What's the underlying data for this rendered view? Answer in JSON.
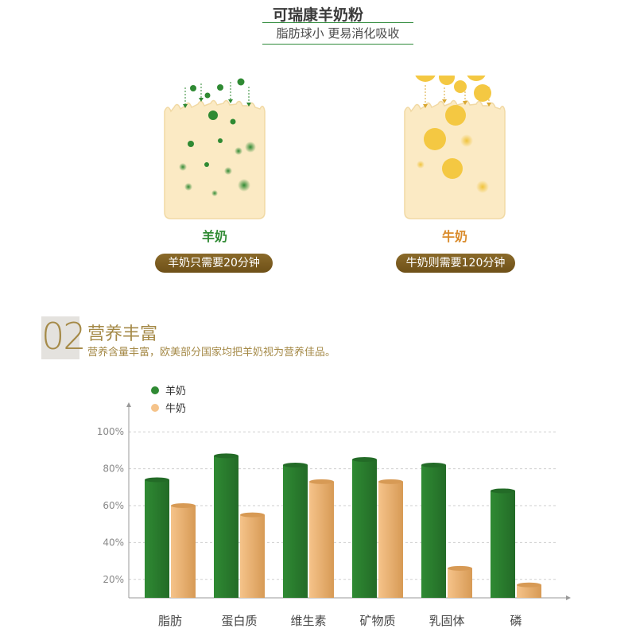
{
  "header": {
    "title": "可瑞康羊奶粉",
    "subtitle": "脂肪球小 更易消化吸收"
  },
  "illustrations": {
    "goat": {
      "label": "羊奶",
      "note": "羊奶只需要20分钟"
    },
    "cow": {
      "label": "牛奶",
      "note": "牛奶则需要120分钟"
    }
  },
  "section": {
    "number": "02",
    "title": "营养丰富",
    "description": "营养含量丰富，欧美部分国家均把羊奶视为营养佳品。"
  },
  "colors": {
    "goat_green": "#2f8a33",
    "cow_orange": "#f5c38a",
    "gold": "#a58a48",
    "cell_fill": "#fbeac4"
  },
  "chart_data": {
    "type": "bar",
    "categories": [
      "脂肪",
      "蛋白质",
      "维生素",
      "矿物质",
      "乳固体",
      "磷"
    ],
    "series": [
      {
        "name": "羊奶",
        "color": "#2f8a33",
        "values": [
          74,
          87,
          82,
          85,
          82,
          68
        ]
      },
      {
        "name": "牛奶",
        "color": "#f5c38a",
        "values": [
          60,
          55,
          73,
          73,
          26,
          17
        ]
      }
    ],
    "ylim": [
      10,
      110
    ],
    "yticks": [
      20,
      40,
      60,
      80,
      100
    ],
    "ytick_labels": [
      "20%",
      "40%",
      "60%",
      "80%",
      "100%"
    ],
    "grid": true,
    "legend_position": "top-left"
  }
}
